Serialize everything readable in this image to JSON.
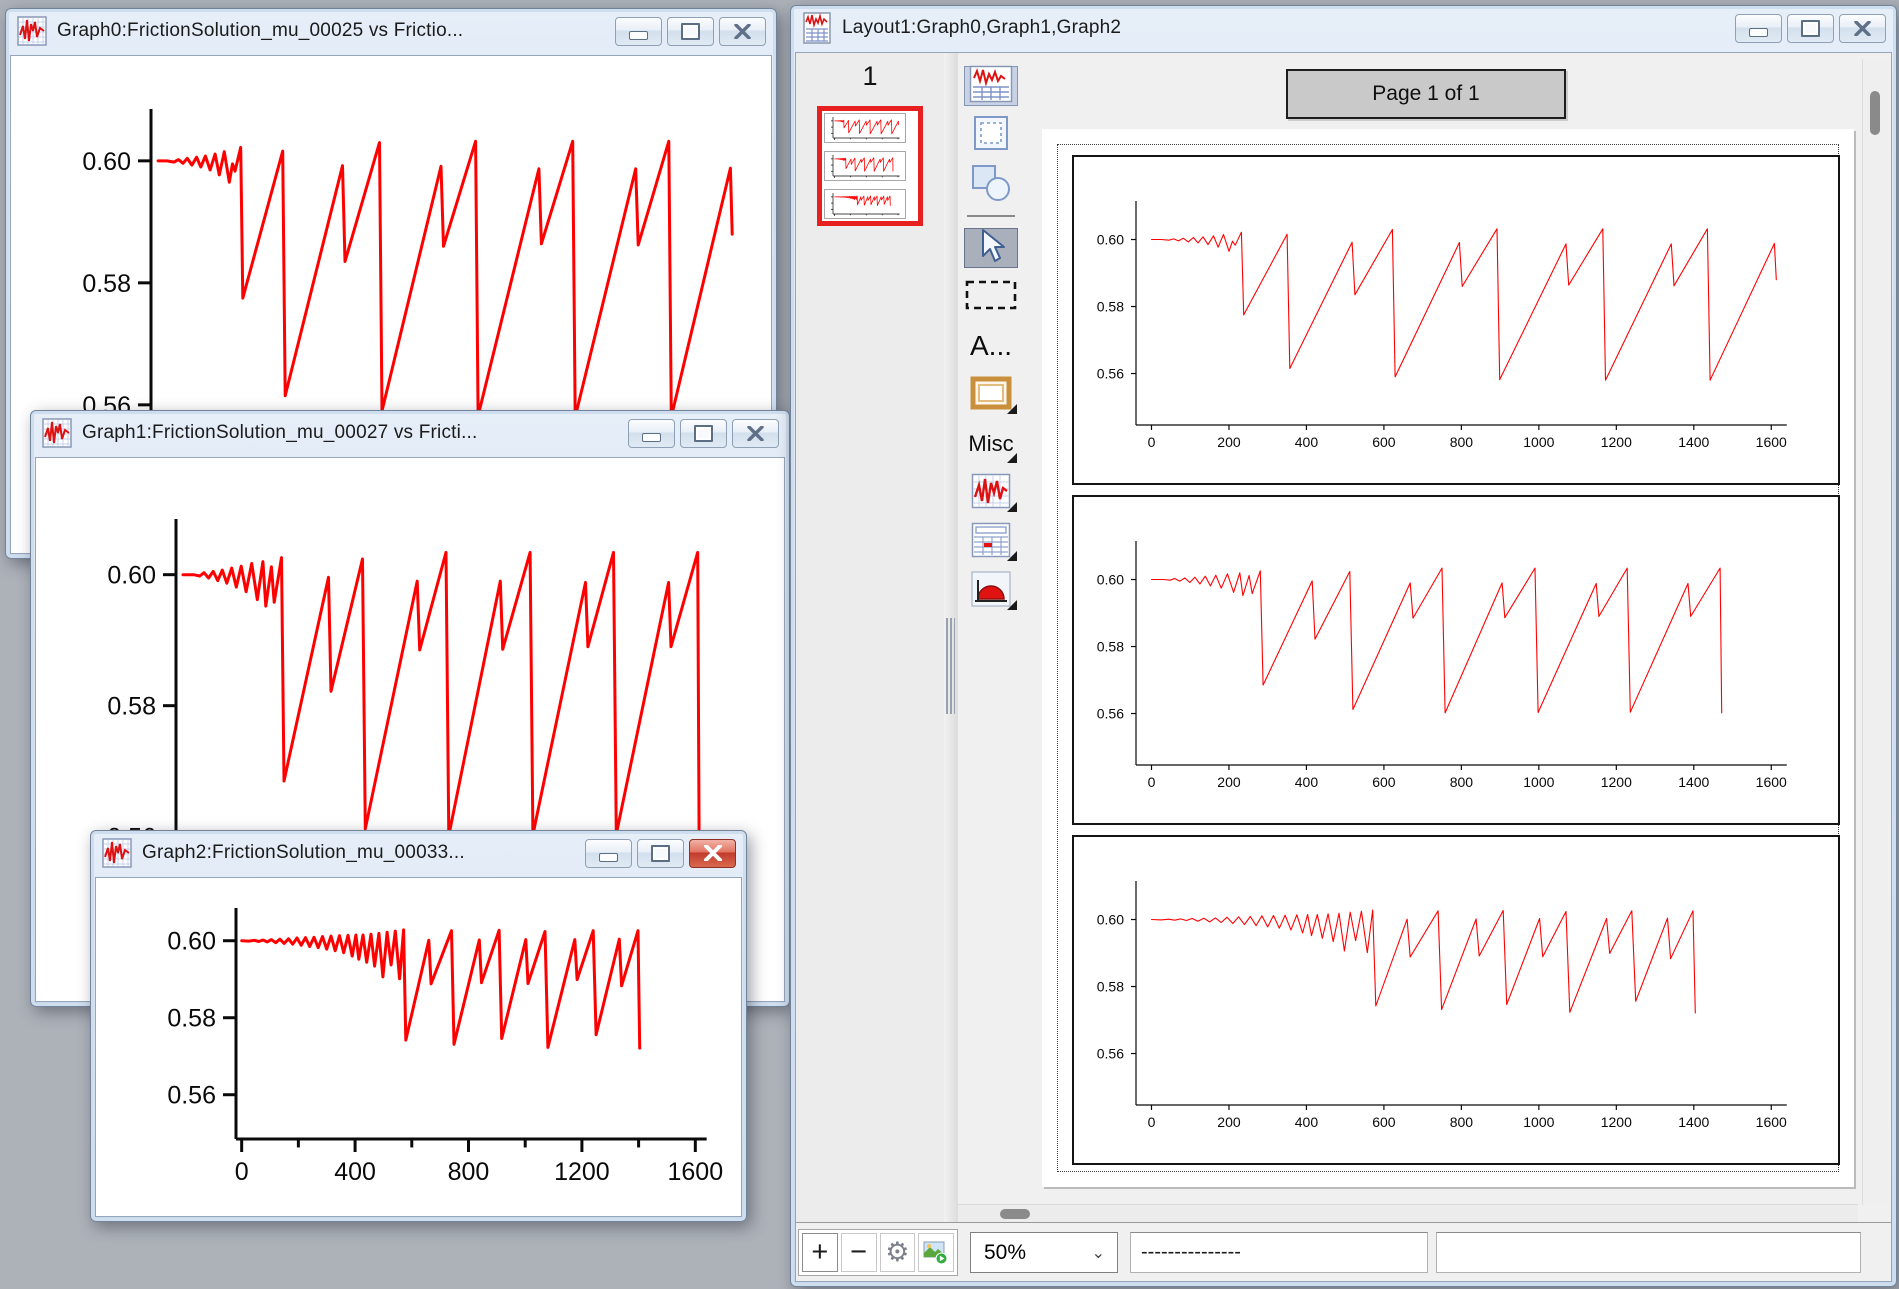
{
  "colors": {
    "curve": "#ff0000",
    "desktop": "#adb2b9",
    "thumb_border": "#e81f1f",
    "active_close": "#c0392c"
  },
  "windows": {
    "graph0": {
      "title": "Graph0:FrictionSolution_mu_00025 vs Frictio..."
    },
    "graph1": {
      "title": "Graph1:FrictionSolution_mu_00027 vs Fricti..."
    },
    "graph2": {
      "title": "Graph2:FrictionSolution_mu_00033..."
    },
    "layout": {
      "title": "Layout1:Graph0,Graph1,Graph2"
    }
  },
  "layout_window": {
    "page_number_label": "1",
    "page_indicator": "Page 1 of 1",
    "zoom_select": {
      "value": "50%"
    },
    "status_field_1": "---------------",
    "status_field_2": "",
    "tools": [
      {
        "name": "layout-mode-button",
        "type": "icon",
        "icon": "layout-graph-icon",
        "selected": true
      },
      {
        "name": "marquee-mode-button",
        "type": "icon",
        "icon": "marquee-page-icon"
      },
      {
        "name": "drawing-mode-button",
        "type": "icon",
        "icon": "shapes-icon"
      },
      {
        "name": "toolbar-separator",
        "type": "separator"
      },
      {
        "name": "arrow-tool-button",
        "type": "icon",
        "icon": "arrow-cursor-icon",
        "selected": true,
        "gray": true
      },
      {
        "name": "marquee-tool-button",
        "type": "icon",
        "icon": "dashed-rectangle-icon"
      },
      {
        "name": "text-tool-button",
        "type": "text",
        "label": "A..."
      },
      {
        "name": "frame-tool-button",
        "type": "icon",
        "icon": "frame-icon",
        "dropdown": true
      },
      {
        "name": "misc-tool-button",
        "type": "text",
        "label": "Misc",
        "dropdown": true
      },
      {
        "name": "graph-tool-button",
        "type": "icon",
        "icon": "graph-icon",
        "dropdown": true
      },
      {
        "name": "table-tool-button",
        "type": "icon",
        "icon": "table-icon",
        "dropdown": true
      },
      {
        "name": "gizmo-tool-button",
        "type": "icon",
        "icon": "gizmo-icon",
        "dropdown": true
      }
    ],
    "bottom_buttons": [
      {
        "name": "add-object-button",
        "glyph": "+"
      },
      {
        "name": "remove-object-button",
        "glyph": "−"
      },
      {
        "name": "settings-button",
        "glyph": "⚙"
      },
      {
        "name": "export-graphic-button",
        "glyph": ""
      }
    ]
  },
  "chart_data": [
    {
      "id": "graph0",
      "type": "line",
      "title": "FrictionSolution_mu_00025",
      "xlabel": "",
      "ylabel": "",
      "grid": false,
      "legend": null,
      "xlim": [
        0,
        1650
      ],
      "ylim": [
        0.545,
        0.61
      ],
      "xticks": [
        0,
        200,
        400,
        600,
        800,
        1000,
        1200,
        1400,
        1600
      ],
      "yticks": [
        0.56,
        0.58,
        0.6
      ],
      "series": [
        {
          "name": "FrictionSolution_mu_00025",
          "color": "#ff0000",
          "points": [
            [
              0,
              0.6
            ],
            [
              25,
              0.6
            ],
            [
              45,
              0.5998
            ],
            [
              57,
              0.6002
            ],
            [
              70,
              0.5996
            ],
            [
              82,
              0.6004
            ],
            [
              95,
              0.5993
            ],
            [
              108,
              0.6006
            ],
            [
              120,
              0.599
            ],
            [
              133,
              0.6008
            ],
            [
              146,
              0.5985
            ],
            [
              160,
              0.6011
            ],
            [
              172,
              0.5977
            ],
            [
              186,
              0.6015
            ],
            [
              200,
              0.5965
            ],
            [
              209,
              0.5995
            ],
            [
              216,
              0.5983
            ],
            [
              232,
              0.6022
            ],
            [
              238,
              0.5775
            ],
            [
              350,
              0.6016
            ],
            [
              357,
              0.5615
            ],
            [
              518,
              0.5992
            ],
            [
              525,
              0.5835
            ],
            [
              622,
              0.603
            ],
            [
              629,
              0.559
            ],
            [
              795,
              0.5991
            ],
            [
              802,
              0.586
            ],
            [
              892,
              0.6032
            ],
            [
              899,
              0.5582
            ],
            [
              1070,
              0.5987
            ],
            [
              1077,
              0.5864
            ],
            [
              1165,
              0.6032
            ],
            [
              1172,
              0.558
            ],
            [
              1342,
              0.5987
            ],
            [
              1349,
              0.5862
            ],
            [
              1435,
              0.6032
            ],
            [
              1442,
              0.558
            ],
            [
              1608,
              0.5988
            ],
            [
              1613,
              0.588
            ]
          ]
        }
      ]
    },
    {
      "id": "graph1",
      "type": "line",
      "title": "FrictionSolution_mu_00027",
      "xlabel": "",
      "ylabel": "",
      "grid": false,
      "legend": null,
      "xlim": [
        0,
        1650
      ],
      "ylim": [
        0.545,
        0.61
      ],
      "xticks": [
        0,
        200,
        400,
        600,
        800,
        1000,
        1200,
        1400,
        1600
      ],
      "yticks": [
        0.56,
        0.58,
        0.6
      ],
      "series": [
        {
          "name": "FrictionSolution_mu_00027",
          "color": "#ff0000",
          "points": [
            [
              0,
              0.6
            ],
            [
              30,
              0.6
            ],
            [
              48,
              0.5998
            ],
            [
              60,
              0.6003
            ],
            [
              73,
              0.5995
            ],
            [
              86,
              0.6005
            ],
            [
              99,
              0.5991
            ],
            [
              112,
              0.6007
            ],
            [
              125,
              0.5987
            ],
            [
              139,
              0.601
            ],
            [
              152,
              0.5981
            ],
            [
              166,
              0.6013
            ],
            [
              180,
              0.5974
            ],
            [
              196,
              0.6017
            ],
            [
              212,
              0.5962
            ],
            [
              228,
              0.602
            ],
            [
              236,
              0.5952
            ],
            [
              252,
              0.6012
            ],
            [
              260,
              0.5958
            ],
            [
              281,
              0.6026
            ],
            [
              288,
              0.5685
            ],
            [
              415,
              0.5996
            ],
            [
              422,
              0.5822
            ],
            [
              512,
              0.6024
            ],
            [
              520,
              0.5612
            ],
            [
              668,
              0.599
            ],
            [
              675,
              0.5885
            ],
            [
              750,
              0.6034
            ],
            [
              758,
              0.5602
            ],
            [
              905,
              0.599
            ],
            [
              912,
              0.5886
            ],
            [
              990,
              0.6034
            ],
            [
              998,
              0.5603
            ],
            [
              1148,
              0.5988
            ],
            [
              1155,
              0.589
            ],
            [
              1228,
              0.6034
            ],
            [
              1236,
              0.5604
            ],
            [
              1385,
              0.5988
            ],
            [
              1392,
              0.589
            ],
            [
              1468,
              0.6034
            ],
            [
              1472,
              0.5602
            ]
          ]
        }
      ]
    },
    {
      "id": "graph2",
      "type": "line",
      "title": "FrictionSolution_mu_00033",
      "xlabel": "",
      "ylabel": "",
      "grid": false,
      "legend": null,
      "xlim": [
        0,
        1650
      ],
      "ylim": [
        0.545,
        0.61
      ],
      "xticks": [
        0,
        200,
        400,
        600,
        800,
        1000,
        1200,
        1400,
        1600
      ],
      "yticks": [
        0.56,
        0.58,
        0.6
      ],
      "series": [
        {
          "name": "FrictionSolution_mu_00033",
          "color": "#ff0000",
          "points": [
            [
              0,
              0.6
            ],
            [
              25,
              0.5999
            ],
            [
              45,
              0.6001
            ],
            [
              60,
              0.5998
            ],
            [
              75,
              0.6002
            ],
            [
              90,
              0.5997
            ],
            [
              105,
              0.6003
            ],
            [
              120,
              0.5995
            ],
            [
              135,
              0.6004
            ],
            [
              150,
              0.5993
            ],
            [
              165,
              0.6005
            ],
            [
              180,
              0.5991
            ],
            [
              195,
              0.6007
            ],
            [
              210,
              0.5988
            ],
            [
              225,
              0.6008
            ],
            [
              240,
              0.5985
            ],
            [
              255,
              0.6009
            ],
            [
              270,
              0.5982
            ],
            [
              285,
              0.6011
            ],
            [
              300,
              0.5978
            ],
            [
              315,
              0.6012
            ],
            [
              330,
              0.5974
            ],
            [
              345,
              0.6013
            ],
            [
              360,
              0.5969
            ],
            [
              375,
              0.6014
            ],
            [
              390,
              0.596
            ],
            [
              403,
              0.6015
            ],
            [
              413,
              0.5952
            ],
            [
              428,
              0.6015
            ],
            [
              441,
              0.5944
            ],
            [
              456,
              0.6017
            ],
            [
              469,
              0.5934
            ],
            [
              484,
              0.6019
            ],
            [
              498,
              0.5906
            ],
            [
              513,
              0.6022
            ],
            [
              527,
              0.5937
            ],
            [
              542,
              0.6025
            ],
            [
              557,
              0.5901
            ],
            [
              571,
              0.6028
            ],
            [
              579,
              0.5742
            ],
            [
              660,
              0.6001
            ],
            [
              668,
              0.5888
            ],
            [
              740,
              0.6026
            ],
            [
              749,
              0.5731
            ],
            [
              838,
              0.6002
            ],
            [
              846,
              0.5891
            ],
            [
              908,
              0.6027
            ],
            [
              917,
              0.5746
            ],
            [
              1002,
              0.6003
            ],
            [
              1010,
              0.5889
            ],
            [
              1070,
              0.6024
            ],
            [
              1080,
              0.5723
            ],
            [
              1175,
              0.6003
            ],
            [
              1183,
              0.5899
            ],
            [
              1240,
              0.6026
            ],
            [
              1250,
              0.5756
            ],
            [
              1332,
              0.6004
            ],
            [
              1340,
              0.5883
            ],
            [
              1398,
              0.6026
            ],
            [
              1404,
              0.5721
            ]
          ]
        }
      ]
    }
  ]
}
